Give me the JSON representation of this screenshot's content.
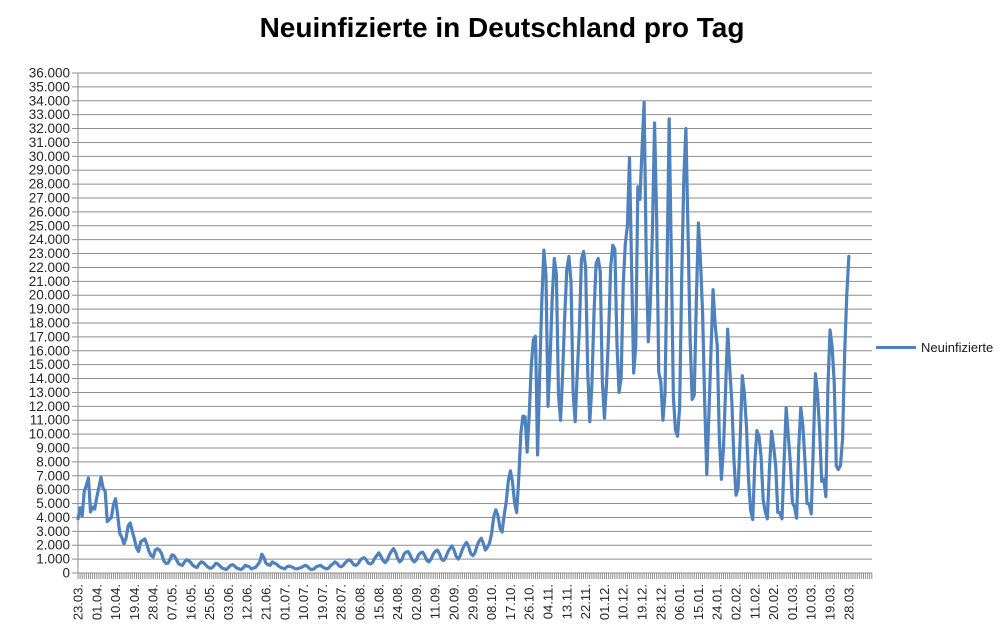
{
  "title": "Neuinfizierte in Deutschland pro Tag",
  "legend": {
    "label": "Neuinfizierte",
    "position": "right"
  },
  "colors": {
    "series": "#4F81BD",
    "gridline": "#8E8E8E",
    "axis": "#8E8E8E",
    "text": "#262626",
    "title_text": "#000000",
    "background": "#FFFFFF"
  },
  "chart_data": {
    "type": "line",
    "title": "Neuinfizierte in Deutschland pro Tag",
    "grid": true,
    "legend_position": "right",
    "y_axis": {
      "min": 0,
      "max": 36000,
      "step": 1000,
      "tick_labels": [
        "0",
        "1.000",
        "2.000",
        "3.000",
        "4.000",
        "5.000",
        "6.000",
        "7.000",
        "8.000",
        "9.000",
        "10.000",
        "11.000",
        "12.000",
        "13.000",
        "14.000",
        "15.000",
        "16.000",
        "17.000",
        "18.000",
        "19.000",
        "20.000",
        "21.000",
        "22.000",
        "23.000",
        "24.000",
        "25.000",
        "26.000",
        "27.000",
        "28.000",
        "29.000",
        "30.000",
        "31.000",
        "32.000",
        "33.000",
        "34.000",
        "35.000",
        "36.000"
      ]
    },
    "x_axis": {
      "tick_labels": [
        "23.03.",
        "01.04.",
        "10.04.",
        "19.04.",
        "28.04.",
        "07.05.",
        "16.05.",
        "25.05.",
        "03.06.",
        "12.06.",
        "21.06.",
        "01.07.",
        "10.07.",
        "19.07.",
        "28.07.",
        "06.08.",
        "15.08.",
        "24.08.",
        "02.09.",
        "11.09.",
        "20.09.",
        "29.09.",
        "08.10.",
        "17.10.",
        "26.10.",
        "04.11.",
        "13.11.",
        "22.11.",
        "01.12.",
        "10.12.",
        "19.12.",
        "28.12.",
        "06.01.",
        "15.01.",
        "24.01.",
        "02.02.",
        "11.02.",
        "20.02.",
        "01.03.",
        "10.03.",
        "19.03.",
        "28.03."
      ],
      "label_every_n_points": 9,
      "label_rotation_deg": 90
    },
    "series": [
      {
        "name": "Neuinfizierte",
        "color": "#4F81BD",
        "values": [
          3900,
          4700,
          4100,
          5900,
          6300,
          6850,
          4400,
          4750,
          4600,
          5450,
          6150,
          6900,
          6100,
          5900,
          3700,
          3850,
          4000,
          4950,
          5350,
          4150,
          2850,
          2550,
          2100,
          2500,
          3400,
          3600,
          3000,
          2450,
          1800,
          1550,
          2250,
          2350,
          2450,
          2050,
          1550,
          1250,
          1150,
          1650,
          1750,
          1650,
          1400,
          900,
          700,
          700,
          950,
          1300,
          1250,
          1000,
          700,
          600,
          550,
          800,
          950,
          900,
          750,
          550,
          450,
          400,
          650,
          800,
          750,
          600,
          450,
          350,
          350,
          500,
          700,
          650,
          500,
          350,
          300,
          250,
          400,
          550,
          600,
          500,
          350,
          300,
          250,
          350,
          550,
          500,
          450,
          300,
          350,
          400,
          600,
          800,
          1350,
          1100,
          700,
          600,
          550,
          800,
          700,
          650,
          500,
          400,
          350,
          300,
          450,
          500,
          450,
          400,
          300,
          300,
          350,
          400,
          500,
          550,
          450,
          300,
          250,
          300,
          450,
          500,
          550,
          450,
          350,
          300,
          350,
          550,
          650,
          800,
          700,
          500,
          450,
          550,
          750,
          900,
          950,
          800,
          600,
          550,
          650,
          900,
          1050,
          1100,
          950,
          700,
          650,
          750,
          1050,
          1250,
          1450,
          1200,
          900,
          750,
          900,
          1300,
          1550,
          1750,
          1500,
          1050,
          800,
          950,
          1350,
          1500,
          1550,
          1300,
          950,
          800,
          950,
          1300,
          1450,
          1500,
          1250,
          900,
          800,
          1000,
          1350,
          1550,
          1650,
          1400,
          1000,
          900,
          1100,
          1500,
          1750,
          1950,
          1650,
          1200,
          1000,
          1250,
          1700,
          2000,
          2200,
          1900,
          1400,
          1250,
          1450,
          1950,
          2300,
          2500,
          2150,
          1650,
          1850,
          2150,
          2850,
          4050,
          4550,
          4150,
          3250,
          2950,
          4150,
          5150,
          6650,
          7350,
          6550,
          5050,
          4350,
          6900,
          10050,
          11300,
          11250,
          8700,
          11400,
          14950,
          16800,
          17050,
          8500,
          14200,
          19500,
          23250,
          21500,
          12000,
          15350,
          19800,
          22650,
          21500,
          12900,
          11000,
          14400,
          18500,
          21850,
          22800,
          21000,
          13000,
          10900,
          14400,
          17550,
          22600,
          23150,
          22000,
          14500,
          10900,
          13550,
          18650,
          22250,
          22650,
          21700,
          13800,
          11150,
          13600,
          17250,
          22050,
          23600,
          23300,
          16500,
          13000,
          14050,
          20800,
          23700,
          25000,
          29900,
          22000,
          14400,
          16350,
          27800,
          26900,
          30500,
          33900,
          22750,
          16650,
          19550,
          24750,
          32400,
          25550,
          14450,
          13750,
          11000,
          12900,
          22450,
          32700,
          22900,
          12700,
          10300,
          9850,
          11900,
          21250,
          28400,
          32000,
          24700,
          16950,
          12500,
          12800,
          19600,
          25200,
          22400,
          18700,
          12250,
          7100,
          11350,
          15950,
          20400,
          17850,
          16400,
          9750,
          6750,
          9000,
          13200,
          17550,
          14650,
          12300,
          8150,
          5600,
          6100,
          9700,
          14200,
          12900,
          10550,
          6700,
          4500,
          3850,
          8000,
          10250,
          9850,
          8350,
          5250,
          4400,
          3900,
          7550,
          10200,
          9100,
          7700,
          4350,
          4350,
          3900,
          8000,
          11900,
          9950,
          7900,
          5050,
          4750,
          3950,
          9000,
          11900,
          10600,
          8100,
          5000,
          5000,
          4250,
          9150,
          14350,
          12900,
          10300,
          6600,
          6750,
          5500,
          13450,
          17500,
          16300,
          13700,
          7700,
          7450,
          7750,
          9650,
          15800,
          20000,
          22800
        ]
      }
    ]
  }
}
